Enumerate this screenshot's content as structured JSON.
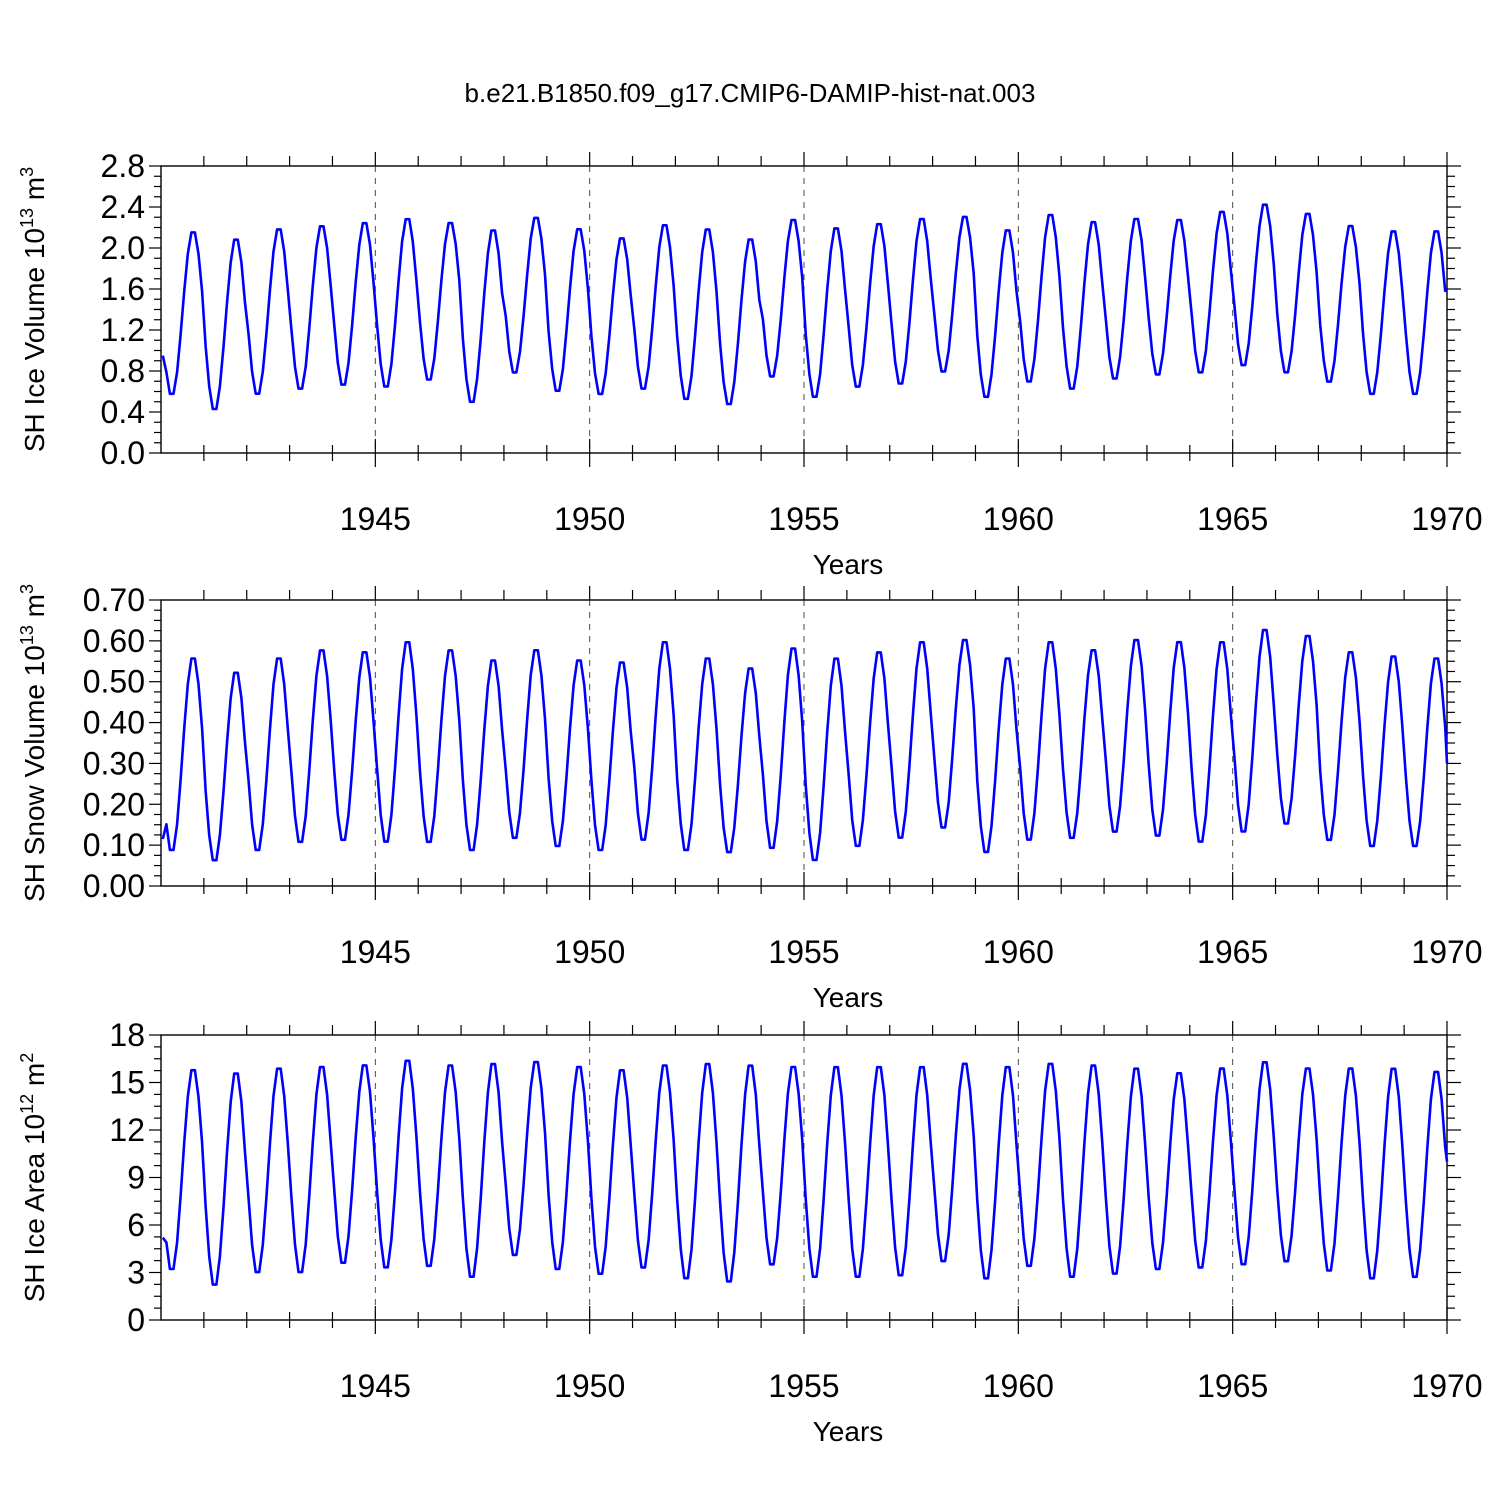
{
  "figure_title": "b.e21.B1850.f09_g17.CMIP6-DAMIP-hist-nat.003",
  "series_color": "#0000ff",
  "chart_data": [
    {
      "type": "line",
      "ylabel_main": "SH Ice Volume 10",
      "ylabel_exp": "13",
      "ylabel_unit": "m",
      "ylabel_unit_exp": "3",
      "xlabel": "Years",
      "xlim": [
        1940,
        1970
      ],
      "ylim": [
        0,
        2.8
      ],
      "xticks": [
        1945,
        1950,
        1955,
        1960,
        1965,
        1970
      ],
      "yticks": [
        "0.0",
        "0.4",
        "0.8",
        "1.2",
        "1.6",
        "2.0",
        "2.4",
        "2.8"
      ],
      "ytick_values": [
        0,
        0.4,
        0.8,
        1.2,
        1.6,
        2.0,
        2.4,
        2.8
      ],
      "annual_max": [
        2.18,
        2.11,
        2.21,
        2.24,
        2.27,
        2.31,
        2.27,
        2.2,
        2.32,
        2.21,
        2.12,
        2.25,
        2.21,
        2.11,
        2.3,
        2.22,
        2.26,
        2.31,
        2.33,
        2.2,
        2.35,
        2.28,
        2.31,
        2.3,
        2.38,
        2.45,
        2.36,
        2.24,
        2.19,
        2.19
      ],
      "annual_min": [
        0.55,
        0.4,
        0.55,
        0.6,
        0.64,
        0.62,
        0.69,
        0.47,
        0.76,
        0.58,
        0.55,
        0.6,
        0.5,
        0.45,
        0.72,
        0.52,
        0.62,
        0.65,
        0.77,
        0.52,
        0.67,
        0.6,
        0.7,
        0.74,
        0.76,
        0.83,
        0.76,
        0.67,
        0.55,
        0.55
      ],
      "start_value": 0.95,
      "end_value": 1.58
    },
    {
      "type": "line",
      "ylabel_main": "SH Snow Volume 10",
      "ylabel_exp": "13",
      "ylabel_unit": "m",
      "ylabel_unit_exp": "3",
      "xlabel": "Years",
      "xlim": [
        1940,
        1970
      ],
      "ylim": [
        0,
        0.7
      ],
      "xticks": [
        1945,
        1950,
        1955,
        1960,
        1965,
        1970
      ],
      "yticks": [
        "0.00",
        "0.10",
        "0.20",
        "0.30",
        "0.40",
        "0.50",
        "0.60",
        "0.70"
      ],
      "ytick_values": [
        0,
        0.1,
        0.2,
        0.3,
        0.4,
        0.5,
        0.6,
        0.7
      ],
      "annual_max": [
        0.565,
        0.53,
        0.565,
        0.585,
        0.58,
        0.605,
        0.585,
        0.56,
        0.585,
        0.56,
        0.555,
        0.605,
        0.565,
        0.54,
        0.59,
        0.565,
        0.58,
        0.605,
        0.61,
        0.565,
        0.605,
        0.585,
        0.61,
        0.605,
        0.605,
        0.635,
        0.62,
        0.58,
        0.57,
        0.565
      ],
      "annual_min": [
        0.08,
        0.055,
        0.08,
        0.1,
        0.105,
        0.1,
        0.1,
        0.08,
        0.11,
        0.09,
        0.08,
        0.105,
        0.08,
        0.075,
        0.085,
        0.055,
        0.09,
        0.11,
        0.135,
        0.075,
        0.105,
        0.11,
        0.125,
        0.115,
        0.1,
        0.125,
        0.145,
        0.105,
        0.09,
        0.09
      ],
      "start_value": 0.115,
      "end_value": 0.3
    },
    {
      "type": "line",
      "ylabel_main": "SH Ice Area 10",
      "ylabel_exp": "12",
      "ylabel_unit": "m",
      "ylabel_unit_exp": "2",
      "xlabel": "Years",
      "xlim": [
        1940,
        1970
      ],
      "ylim": [
        0,
        18
      ],
      "xticks": [
        1945,
        1950,
        1955,
        1960,
        1965,
        1970
      ],
      "yticks": [
        "0",
        "3",
        "6",
        "9",
        "12",
        "15",
        "18"
      ],
      "ytick_values": [
        0,
        3,
        6,
        9,
        12,
        15,
        18
      ],
      "annual_max": [
        16.0,
        15.8,
        16.1,
        16.2,
        16.3,
        16.6,
        16.3,
        16.4,
        16.5,
        16.2,
        16.0,
        16.3,
        16.4,
        16.3,
        16.2,
        16.2,
        16.2,
        16.2,
        16.4,
        16.2,
        16.4,
        16.3,
        16.1,
        15.8,
        16.1,
        16.5,
        16.1,
        16.1,
        16.1,
        15.9
      ],
      "annual_min": [
        3.0,
        2.0,
        2.8,
        2.8,
        3.4,
        3.1,
        3.2,
        2.5,
        3.9,
        3.0,
        2.7,
        3.1,
        2.4,
        2.2,
        3.3,
        2.5,
        2.5,
        2.6,
        3.5,
        2.4,
        3.2,
        2.5,
        2.7,
        3.0,
        3.1,
        3.3,
        3.5,
        2.9,
        2.4,
        2.5
      ],
      "start_value": 5.2,
      "end_value": 10.0
    }
  ]
}
